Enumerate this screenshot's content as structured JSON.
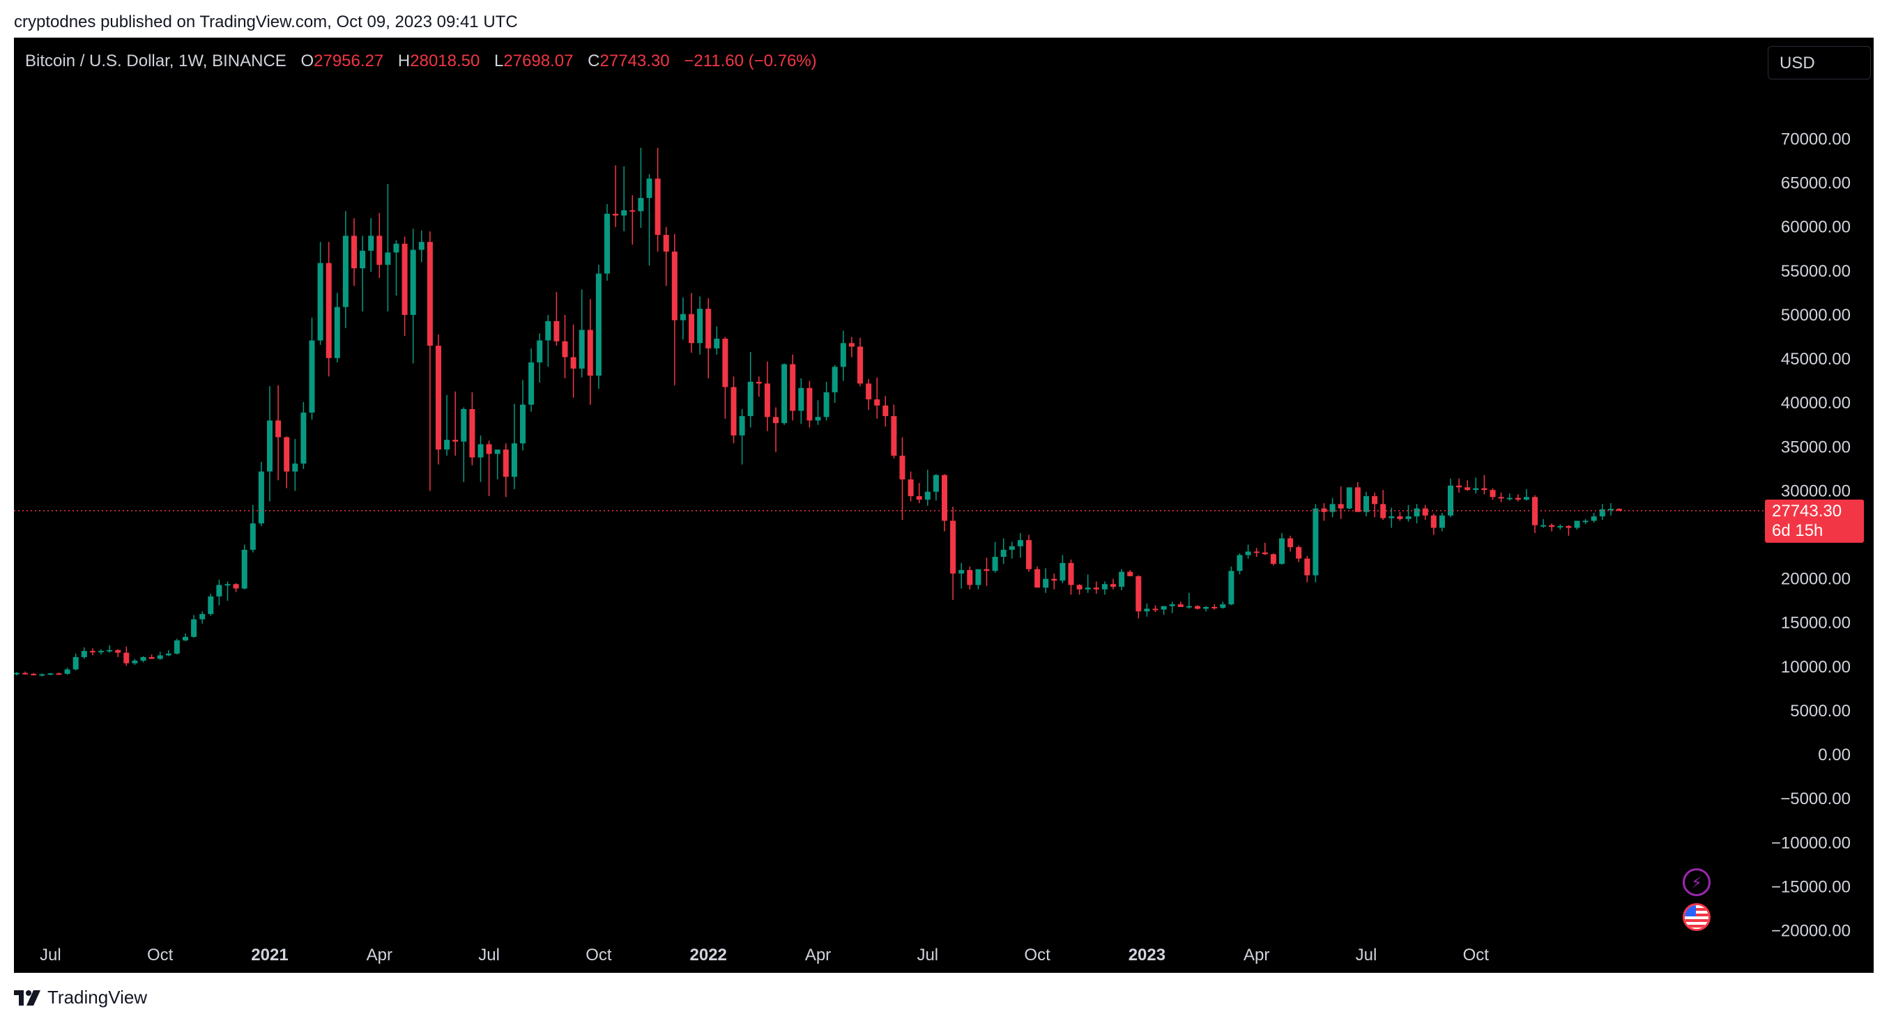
{
  "published": "cryptodnes published on TradingView.com, Oct 09, 2023 09:41 UTC",
  "legend": {
    "symbol": "Bitcoin / U.S. Dollar, 1W, BINANCE",
    "o_label": "O",
    "o_value": "27956.27",
    "h_label": "H",
    "h_value": "28018.50",
    "l_label": "L",
    "l_value": "27698.07",
    "c_label": "C",
    "c_value": "27743.30",
    "change": "−211.60 (−0.76%)"
  },
  "currency_button": "USD",
  "price_label": {
    "value": "27743.30",
    "countdown": "6d 15h"
  },
  "footer": {
    "logo_text": "TradingView"
  },
  "icons": [
    "lightning-icon",
    "us-flag-icon",
    "tradingview-logo-icon"
  ],
  "colors": {
    "up": "#089981",
    "down": "#f23645",
    "background": "#000000",
    "text": "#d1d4dc"
  },
  "chart_data": {
    "type": "candlestick",
    "title": "Bitcoin / U.S. Dollar, 1W, BINANCE",
    "ylim": [
      -24000,
      74000
    ],
    "yticks": [
      70000,
      65000,
      60000,
      55000,
      50000,
      45000,
      40000,
      35000,
      30000,
      20000,
      15000,
      10000,
      5000,
      0,
      -5000,
      -10000,
      -15000,
      -20000
    ],
    "ytick_labels": [
      "70000.00",
      "65000.00",
      "60000.00",
      "55000.00",
      "50000.00",
      "45000.00",
      "40000.00",
      "35000.00",
      "30000.00",
      "20000.00",
      "15000.00",
      "10000.00",
      "5000.00",
      "0.00",
      "−5000.00",
      "−10000.00",
      "−15000.00",
      "−20000.00"
    ],
    "x_labels": [
      {
        "label": "Jul",
        "week": 4,
        "bold": false
      },
      {
        "label": "Oct",
        "week": 17,
        "bold": false
      },
      {
        "label": "2021",
        "week": 30,
        "bold": true
      },
      {
        "label": "Apr",
        "week": 43,
        "bold": false
      },
      {
        "label": "Jul",
        "week": 56,
        "bold": false
      },
      {
        "label": "Oct",
        "week": 69,
        "bold": false
      },
      {
        "label": "2022",
        "week": 82,
        "bold": true
      },
      {
        "label": "Apr",
        "week": 95,
        "bold": false
      },
      {
        "label": "Jul",
        "week": 108,
        "bold": false
      },
      {
        "label": "Oct",
        "week": 121,
        "bold": false
      },
      {
        "label": "2023",
        "week": 134,
        "bold": true
      },
      {
        "label": "Apr",
        "week": 147,
        "bold": false
      },
      {
        "label": "Jul",
        "week": 160,
        "bold": false
      },
      {
        "label": "Oct",
        "week": 173,
        "bold": false
      }
    ],
    "last_price": 27743.3,
    "candles": [
      [
        9200,
        9400,
        9000,
        9300
      ],
      [
        9300,
        9450,
        9100,
        9200
      ],
      [
        9200,
        9300,
        9000,
        9100
      ],
      [
        9100,
        9250,
        8900,
        9150
      ],
      [
        9150,
        9300,
        9050,
        9250
      ],
      [
        9250,
        9350,
        9100,
        9200
      ],
      [
        9200,
        9900,
        9100,
        9700
      ],
      [
        9700,
        11500,
        9600,
        11100
      ],
      [
        11100,
        12200,
        10900,
        11800
      ],
      [
        11800,
        12100,
        11300,
        11700
      ],
      [
        11700,
        12000,
        11400,
        11800
      ],
      [
        11800,
        12450,
        11600,
        11900
      ],
      [
        11900,
        12000,
        11100,
        11600
      ],
      [
        11600,
        12300,
        10100,
        10400
      ],
      [
        10400,
        10900,
        10200,
        10700
      ],
      [
        10700,
        11200,
        10500,
        11100
      ],
      [
        11100,
        11400,
        10900,
        10900
      ],
      [
        10900,
        11700,
        10800,
        11300
      ],
      [
        11300,
        11900,
        11200,
        11500
      ],
      [
        11500,
        13200,
        11400,
        13000
      ],
      [
        13000,
        13800,
        12900,
        13400
      ],
      [
        13400,
        15900,
        13300,
        15400
      ],
      [
        15400,
        16300,
        14900,
        16000
      ],
      [
        16000,
        18300,
        15800,
        18000
      ],
      [
        18000,
        19900,
        17000,
        19300
      ],
      [
        19300,
        19700,
        17500,
        19400
      ],
      [
        19400,
        19500,
        18500,
        18900
      ],
      [
        18900,
        23900,
        18800,
        23300
      ],
      [
        23300,
        28400,
        23000,
        26300
      ],
      [
        26300,
        33300,
        26000,
        32200
      ],
      [
        32200,
        41900,
        28800,
        38000
      ],
      [
        38000,
        42000,
        31200,
        36100
      ],
      [
        36100,
        36200,
        30300,
        32200
      ],
      [
        32200,
        35900,
        30000,
        33100
      ],
      [
        33100,
        40100,
        32500,
        38900
      ],
      [
        38900,
        49700,
        38100,
        47100
      ],
      [
        47100,
        58300,
        46600,
        55900
      ],
      [
        55900,
        58300,
        43000,
        45100
      ],
      [
        45100,
        52500,
        44600,
        50900
      ],
      [
        50900,
        61800,
        48500,
        59000
      ],
      [
        59000,
        61000,
        53300,
        55300
      ],
      [
        55300,
        59000,
        50400,
        57300
      ],
      [
        57300,
        61000,
        54900,
        59000
      ],
      [
        59000,
        61600,
        54200,
        55700
      ],
      [
        55700,
        64900,
        50400,
        57100
      ],
      [
        57100,
        58500,
        52200,
        58100
      ],
      [
        58100,
        58900,
        47600,
        50000
      ],
      [
        50000,
        59800,
        44500,
        57400
      ],
      [
        57400,
        59600,
        56000,
        58300
      ],
      [
        58300,
        59500,
        30000,
        46500
      ],
      [
        46500,
        47800,
        33000,
        34700
      ],
      [
        34700,
        40900,
        34000,
        35800
      ],
      [
        35800,
        41300,
        34000,
        35600
      ],
      [
        35600,
        39500,
        31000,
        39300
      ],
      [
        39300,
        41200,
        32900,
        33800
      ],
      [
        33800,
        36300,
        31000,
        35300
      ],
      [
        35300,
        35700,
        29400,
        34200
      ],
      [
        34200,
        34700,
        31300,
        34700
      ],
      [
        34700,
        35400,
        29300,
        31600
      ],
      [
        31600,
        39900,
        30200,
        35400
      ],
      [
        35400,
        42600,
        34600,
        39800
      ],
      [
        39800,
        46200,
        39000,
        44600
      ],
      [
        44600,
        47900,
        42300,
        47100
      ],
      [
        47100,
        50000,
        44100,
        49300
      ],
      [
        49300,
        52600,
        46500,
        47000
      ],
      [
        47000,
        50000,
        42800,
        45200
      ],
      [
        45200,
        48900,
        40600,
        43900
      ],
      [
        43900,
        52900,
        42900,
        48300
      ],
      [
        48300,
        51800,
        39800,
        43100
      ],
      [
        43100,
        55700,
        41600,
        54700
      ],
      [
        54700,
        62600,
        53900,
        61500
      ],
      [
        61500,
        67000,
        60000,
        61300
      ],
      [
        61300,
        66900,
        59500,
        61900
      ],
      [
        61900,
        63600,
        58000,
        61800
      ],
      [
        61800,
        69000,
        59900,
        63300
      ],
      [
        63300,
        66000,
        55600,
        65500
      ],
      [
        65500,
        69000,
        57200,
        59100
      ],
      [
        59100,
        60000,
        53300,
        57200
      ],
      [
        57200,
        59200,
        42000,
        49400
      ],
      [
        49400,
        52000,
        47200,
        50100
      ],
      [
        50100,
        52500,
        45700,
        46800
      ],
      [
        46800,
        52100,
        45500,
        50700
      ],
      [
        50700,
        51900,
        42800,
        46200
      ],
      [
        46200,
        48700,
        45500,
        47300
      ],
      [
        47300,
        47500,
        38200,
        41800
      ],
      [
        41800,
        43000,
        35400,
        36300
      ],
      [
        36300,
        39300,
        33000,
        38500
      ],
      [
        38500,
        45800,
        37200,
        42400
      ],
      [
        42400,
        43000,
        40700,
        42200
      ],
      [
        42200,
        44700,
        36800,
        38400
      ],
      [
        38400,
        39500,
        34400,
        37700
      ],
      [
        37700,
        44500,
        37500,
        44400
      ],
      [
        44400,
        45500,
        38000,
        39100
      ],
      [
        39100,
        42800,
        37600,
        41700
      ],
      [
        41700,
        42500,
        37200,
        38000
      ],
      [
        38000,
        40300,
        37500,
        38400
      ],
      [
        38400,
        42400,
        38000,
        41200
      ],
      [
        41200,
        44300,
        40000,
        44100
      ],
      [
        44100,
        48200,
        42500,
        46800
      ],
      [
        46800,
        47500,
        45200,
        46400
      ],
      [
        46400,
        47400,
        41900,
        42200
      ],
      [
        42200,
        42700,
        39200,
        40400
      ],
      [
        40400,
        42900,
        38200,
        39700
      ],
      [
        39700,
        40800,
        37300,
        38500
      ],
      [
        38500,
        39800,
        33700,
        34000
      ],
      [
        34000,
        36100,
        26700,
        31300
      ],
      [
        31300,
        32200,
        28800,
        29400
      ],
      [
        29400,
        30900,
        28600,
        29000
      ],
      [
        29000,
        32400,
        28300,
        29900
      ],
      [
        29900,
        31900,
        28900,
        31800
      ],
      [
        31800,
        31900,
        25400,
        26600
      ],
      [
        26600,
        28200,
        17600,
        20600
      ],
      [
        20600,
        21800,
        18900,
        21000
      ],
      [
        21000,
        21400,
        18800,
        19300
      ],
      [
        19300,
        20800,
        18800,
        21100
      ],
      [
        21100,
        22400,
        19200,
        20900
      ],
      [
        20900,
        24200,
        20700,
        22500
      ],
      [
        22500,
        24600,
        21700,
        23300
      ],
      [
        23300,
        24200,
        22300,
        23700
      ],
      [
        23700,
        25200,
        22400,
        24400
      ],
      [
        24400,
        25000,
        20800,
        21100
      ],
      [
        21100,
        21400,
        19500,
        19000
      ],
      [
        19000,
        21200,
        18400,
        20000
      ],
      [
        20000,
        20600,
        18800,
        19800
      ],
      [
        19800,
        22700,
        19500,
        21800
      ],
      [
        21800,
        22200,
        18200,
        19300
      ],
      [
        19300,
        19400,
        18200,
        18800
      ],
      [
        18800,
        20500,
        18400,
        19000
      ],
      [
        19000,
        19700,
        18300,
        18800
      ],
      [
        18800,
        19700,
        18200,
        19400
      ],
      [
        19400,
        20000,
        18800,
        19100
      ],
      [
        19100,
        21100,
        18700,
        20800
      ],
      [
        20800,
        21000,
        20300,
        20300
      ],
      [
        20300,
        20400,
        15500,
        16300
      ],
      [
        16300,
        17200,
        15700,
        16600
      ],
      [
        16600,
        17000,
        16200,
        16500
      ],
      [
        16500,
        16900,
        15900,
        16900
      ],
      [
        16900,
        17400,
        16100,
        17100
      ],
      [
        17100,
        17400,
        16800,
        16800
      ],
      [
        16800,
        18400,
        16600,
        16900
      ],
      [
        16900,
        17000,
        16500,
        16600
      ],
      [
        16600,
        16900,
        16300,
        16800
      ],
      [
        16800,
        17100,
        16500,
        16700
      ],
      [
        16700,
        17400,
        16600,
        17100
      ],
      [
        17100,
        21400,
        17000,
        20900
      ],
      [
        20900,
        22900,
        20500,
        22700
      ],
      [
        22700,
        23900,
        22300,
        23100
      ],
      [
        23100,
        23500,
        22500,
        23000
      ],
      [
        23000,
        24100,
        22700,
        22800
      ],
      [
        22800,
        22900,
        21500,
        21700
      ],
      [
        21700,
        25200,
        21600,
        24600
      ],
      [
        24600,
        24900,
        23100,
        23600
      ],
      [
        23600,
        23800,
        21900,
        22300
      ],
      [
        22300,
        22600,
        19600,
        20400
      ],
      [
        20400,
        28500,
        19600,
        28000
      ],
      [
        28000,
        28600,
        26600,
        27600
      ],
      [
        27600,
        29200,
        27000,
        28500
      ],
      [
        28500,
        30500,
        26800,
        28000
      ],
      [
        28000,
        30200,
        27900,
        30400
      ],
      [
        30400,
        31000,
        28200,
        27600
      ],
      [
        27600,
        29900,
        27100,
        29400
      ],
      [
        29400,
        29800,
        27000,
        28500
      ],
      [
        28500,
        30100,
        26700,
        26900
      ],
      [
        26900,
        28100,
        25800,
        27100
      ],
      [
        27100,
        27600,
        26600,
        26800
      ],
      [
        26800,
        28400,
        26500,
        27100
      ],
      [
        27100,
        28500,
        26300,
        28000
      ],
      [
        28000,
        28400,
        26700,
        27200
      ],
      [
        27200,
        27400,
        25000,
        25800
      ],
      [
        25800,
        27500,
        25400,
        27200
      ],
      [
        27200,
        31400,
        27000,
        30600
      ],
      [
        30600,
        31400,
        29800,
        30400
      ],
      [
        30400,
        31200,
        30000,
        30100
      ],
      [
        30100,
        31500,
        29700,
        30300
      ],
      [
        30300,
        31800,
        29600,
        30100
      ],
      [
        30100,
        30300,
        29000,
        29300
      ],
      [
        29300,
        29800,
        28700,
        29200
      ],
      [
        29200,
        29700,
        28900,
        29200
      ],
      [
        29200,
        29600,
        28800,
        29000
      ],
      [
        29000,
        30200,
        28900,
        29300
      ],
      [
        29300,
        29500,
        25200,
        26100
      ],
      [
        26100,
        26800,
        25800,
        26100
      ],
      [
        26100,
        26300,
        25400,
        25900
      ],
      [
        25900,
        26200,
        25600,
        26000
      ],
      [
        26000,
        26100,
        24900,
        25800
      ],
      [
        25800,
        26600,
        25600,
        26600
      ],
      [
        26600,
        26800,
        26200,
        26600
      ],
      [
        26600,
        27500,
        26400,
        27100
      ],
      [
        27100,
        28500,
        26700,
        27900
      ],
      [
        27900,
        28600,
        27200,
        27956
      ],
      [
        27956,
        28018,
        27698,
        27743
      ]
    ]
  }
}
